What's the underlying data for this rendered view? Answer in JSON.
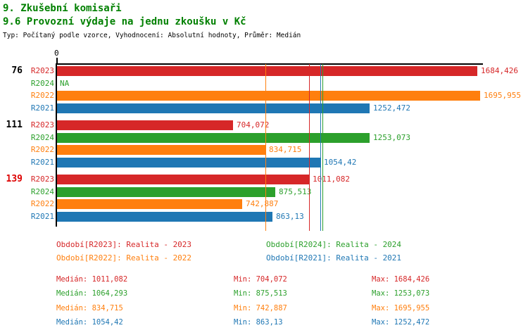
{
  "header": {
    "title1": "9. Zkušební komisaři",
    "title2": "9.6 Provozní výdaje na jednu zkoušku v Kč",
    "meta": "Typ: Počítaný podle vzorce, Vyhodnocení: Absolutní hodnoty, Průměr: Medián"
  },
  "chart_data": {
    "type": "bar",
    "orientation": "horizontal",
    "title": "9.6 Provozní výdaje na jednu zkoušku v Kč",
    "origin_label": "0",
    "xlim": [
      0,
      1707
    ],
    "grid": false,
    "series_order": [
      "R2023",
      "R2024",
      "R2022",
      "R2021"
    ],
    "colors": {
      "R2023": "#d62728",
      "R2024": "#2ca02c",
      "R2022": "#ff7f0e",
      "R2021": "#1f77b4",
      "axis": "#000000",
      "title": "#008000",
      "highlight_group": "#dd0000"
    },
    "groups": [
      {
        "label": "76",
        "label_color": "#000000",
        "bars": [
          {
            "series": "R2023",
            "value": 1684.426,
            "display": "1684,426"
          },
          {
            "series": "R2024",
            "value": null,
            "display": "NA"
          },
          {
            "series": "R2022",
            "value": 1695.955,
            "display": "1695,955"
          },
          {
            "series": "R2021",
            "value": 1252.472,
            "display": "1252,472"
          }
        ]
      },
      {
        "label": "111",
        "label_color": "#000000",
        "bars": [
          {
            "series": "R2023",
            "value": 704.072,
            "display": "704,072"
          },
          {
            "series": "R2024",
            "value": 1253.073,
            "display": "1253,073"
          },
          {
            "series": "R2022",
            "value": 834.715,
            "display": "834,715"
          },
          {
            "series": "R2021",
            "value": 1054.42,
            "display": "1054,42"
          }
        ]
      },
      {
        "label": "139",
        "label_color": "#dd0000",
        "bars": [
          {
            "series": "R2023",
            "value": 1011.082,
            "display": "1011,082"
          },
          {
            "series": "R2024",
            "value": 875.513,
            "display": "875,513"
          },
          {
            "series": "R2022",
            "value": 742.887,
            "display": "742,887"
          },
          {
            "series": "R2021",
            "value": 863.13,
            "display": "863,13"
          }
        ]
      }
    ],
    "median_lines": [
      {
        "series": "R2023",
        "value": 1011.082
      },
      {
        "series": "R2024",
        "value": 1064.293
      },
      {
        "series": "R2022",
        "value": 834.715
      },
      {
        "series": "R2021",
        "value": 1054.42
      }
    ],
    "legend": [
      {
        "series": "R2023",
        "text": "Období[R2023]: Realita - 2023",
        "col": 0,
        "row": 0
      },
      {
        "series": "R2024",
        "text": "Období[R2024]: Realita - 2024",
        "col": 1,
        "row": 0
      },
      {
        "series": "R2022",
        "text": "Období[R2022]: Realita - 2022",
        "col": 0,
        "row": 1
      },
      {
        "series": "R2021",
        "text": "Období[R2021]: Realita - 2021",
        "col": 1,
        "row": 1
      }
    ],
    "stats": [
      {
        "series": "R2023",
        "median": "Medián: 1011,082",
        "min": "Min: 704,072",
        "max": "Max: 1684,426"
      },
      {
        "series": "R2024",
        "median": "Medián: 1064,293",
        "min": "Min: 875,513",
        "max": "Max: 1253,073"
      },
      {
        "series": "R2022",
        "median": "Medián: 834,715",
        "min": "Min: 742,887",
        "max": "Max: 1695,955"
      },
      {
        "series": "R2021",
        "median": "Medián: 1054,42",
        "min": "Min: 863,13",
        "max": "Max: 1252,472"
      }
    ]
  }
}
